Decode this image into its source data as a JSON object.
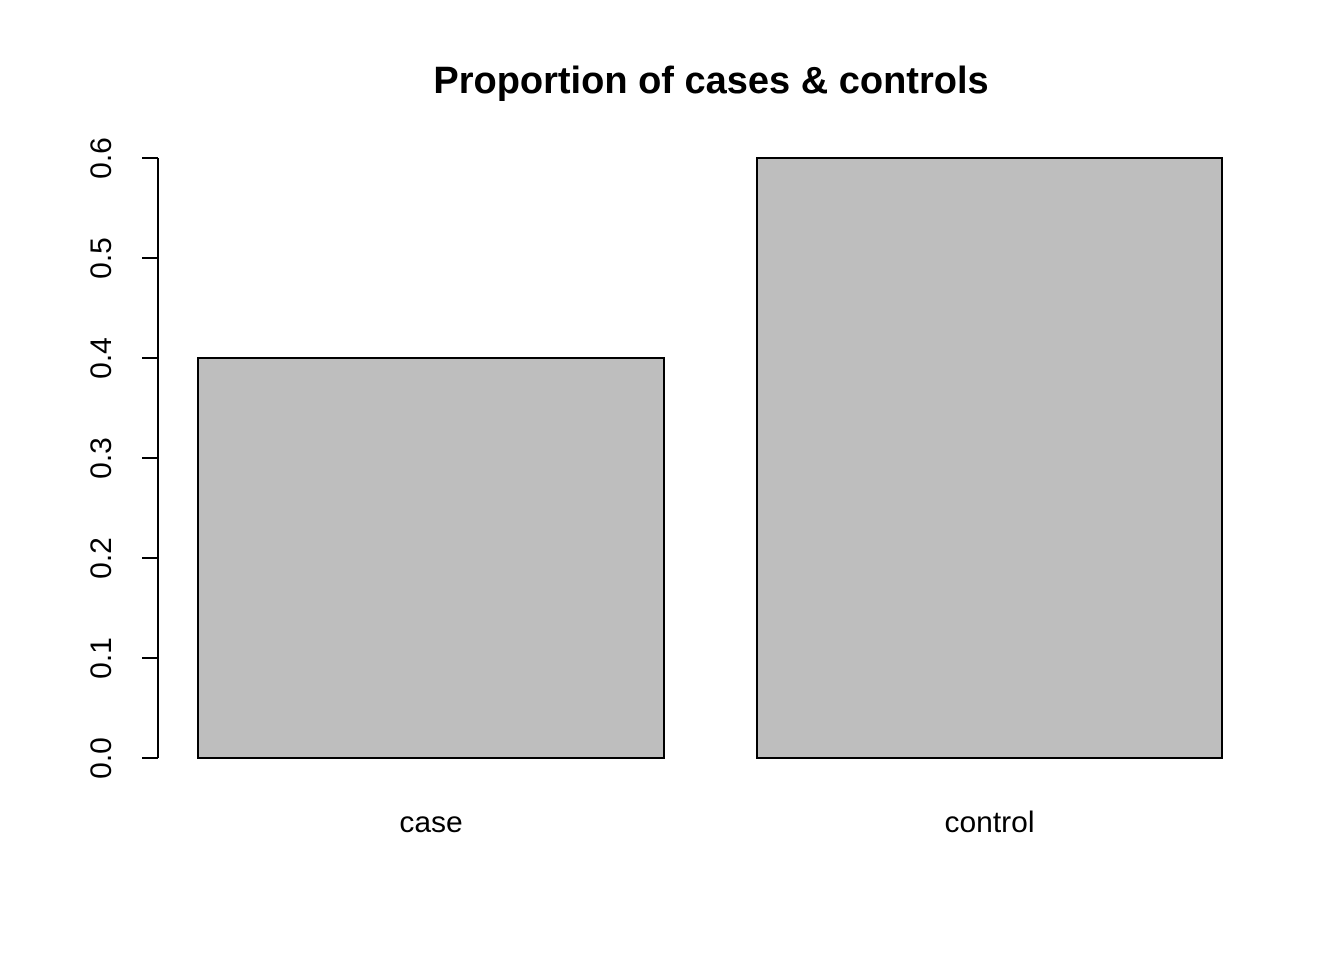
{
  "chart_data": {
    "type": "bar",
    "title": "Proportion of cases & controls",
    "xlabel": "",
    "ylabel": "",
    "categories": [
      "case",
      "control"
    ],
    "values": [
      0.4,
      0.6
    ],
    "ylim": [
      0,
      0.6
    ],
    "yticks": [
      "0.0",
      "0.1",
      "0.2",
      "0.3",
      "0.4",
      "0.5",
      "0.6"
    ],
    "bar_color": "#bebebe",
    "grid": false,
    "legend": "none"
  }
}
